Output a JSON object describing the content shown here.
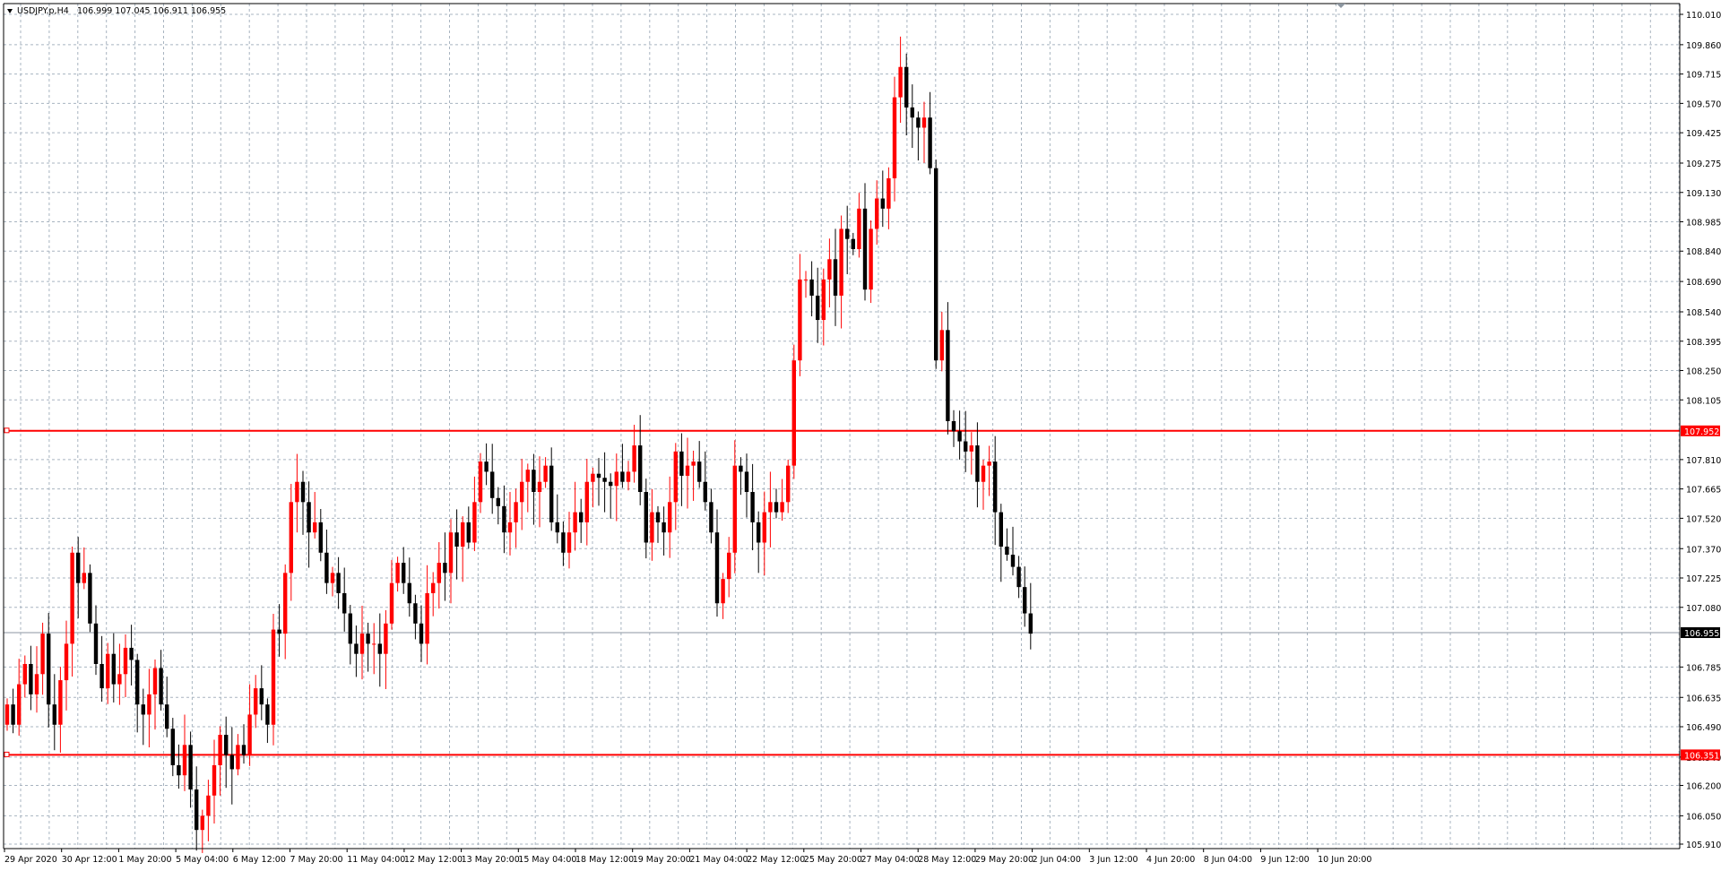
{
  "window": {
    "title_symbol": "USDJPY.p,H4",
    "title_ohlc": "106.999 107.045 106.911 106.955"
  },
  "colors": {
    "background": "#ffffff",
    "grid": "#a8b4c0",
    "bull": "#ff0000",
    "bear": "#000000",
    "hline": "#ff0000",
    "bid_line": "#8c96a0",
    "text": "#000000"
  },
  "price_labels": [
    "110.010",
    "109.860",
    "109.715",
    "109.570",
    "109.425",
    "109.275",
    "109.130",
    "108.985",
    "108.840",
    "108.690",
    "108.540",
    "108.395",
    "108.250",
    "108.105",
    "107.810",
    "107.665",
    "107.520",
    "107.370",
    "107.225",
    "107.080",
    "106.785",
    "106.635",
    "106.490",
    "106.340",
    "106.200",
    "106.050",
    "105.910"
  ],
  "horizontal_lines": [
    {
      "price": 107.952,
      "label": "107.952"
    },
    {
      "price": 106.351,
      "label": "106.351"
    }
  ],
  "bid": {
    "price": 106.955,
    "label": "106.955"
  },
  "time_labels": [
    "29 Apr 2020",
    "30 Apr 12:00",
    "1 May 20:00",
    "5 May 04:00",
    "6 May 12:00",
    "7 May 20:00",
    "11 May 04:00",
    "12 May 12:00",
    "13 May 20:00",
    "15 May 04:00",
    "18 May 12:00",
    "19 May 20:00",
    "21 May 04:00",
    "22 May 12:00",
    "25 May 20:00",
    "27 May 04:00",
    "28 May 12:00",
    "29 May 20:00",
    "2 Jun 04:00",
    "3 Jun 12:00",
    "4 Jun 20:00",
    "8 Jun 04:00",
    "9 Jun 12:00",
    "10 Jun 20:00"
  ],
  "chart_data": {
    "type": "candlestick",
    "symbol": "USDJPY.p",
    "timeframe": "H4",
    "ylim": [
      105.91,
      110.01
    ],
    "closes": [
      106.6,
      106.5,
      106.7,
      106.8,
      106.65,
      106.75,
      106.95,
      106.6,
      106.5,
      106.72,
      106.9,
      107.35,
      107.2,
      107.25,
      107.0,
      106.8,
      106.68,
      106.85,
      106.7,
      106.75,
      106.88,
      106.82,
      106.6,
      106.55,
      106.65,
      106.78,
      106.6,
      106.48,
      106.3,
      106.25,
      106.4,
      106.18,
      105.98,
      106.05,
      106.15,
      106.3,
      106.45,
      106.35,
      106.28,
      106.4,
      106.35,
      106.55,
      106.68,
      106.6,
      106.5,
      106.97,
      106.95,
      107.25,
      107.6,
      107.7,
      107.6,
      107.45,
      107.5,
      107.35,
      107.2,
      107.25,
      107.15,
      107.05,
      106.9,
      106.85,
      106.95,
      106.9,
      106.9,
      106.85,
      107.0,
      107.2,
      107.3,
      107.2,
      107.1,
      107.0,
      106.9,
      107.15,
      107.2,
      107.3,
      107.25,
      107.45,
      107.38,
      107.5,
      107.4,
      107.6,
      107.8,
      107.75,
      107.62,
      107.58,
      107.45,
      107.5,
      107.6,
      107.7,
      107.76,
      107.65,
      107.7,
      107.78,
      107.5,
      107.45,
      107.35,
      107.45,
      107.55,
      107.5,
      107.7,
      107.74,
      107.72,
      107.7,
      107.68,
      107.75,
      107.7,
      107.75,
      107.88,
      107.65,
      107.4,
      107.55,
      107.5,
      107.45,
      107.6,
      107.85,
      107.73,
      107.78,
      107.8,
      107.7,
      107.6,
      107.45,
      107.1,
      107.22,
      107.35,
      107.78,
      107.75,
      107.65,
      107.5,
      107.4,
      107.55,
      107.6,
      107.55,
      107.6,
      107.78,
      108.3,
      108.7,
      108.7,
      108.62,
      108.5,
      108.7,
      108.8,
      108.62,
      108.95,
      108.9,
      108.85,
      109.05,
      108.65,
      108.95,
      109.1,
      109.05,
      109.2,
      109.6,
      109.75,
      109.55,
      109.5,
      109.45,
      109.5,
      109.25,
      108.3,
      108.45,
      108.0,
      107.95,
      107.9,
      107.85,
      107.88,
      107.7,
      107.78,
      107.8,
      107.55,
      107.38,
      107.34,
      107.28,
      107.18,
      107.05,
      106.95
    ]
  }
}
